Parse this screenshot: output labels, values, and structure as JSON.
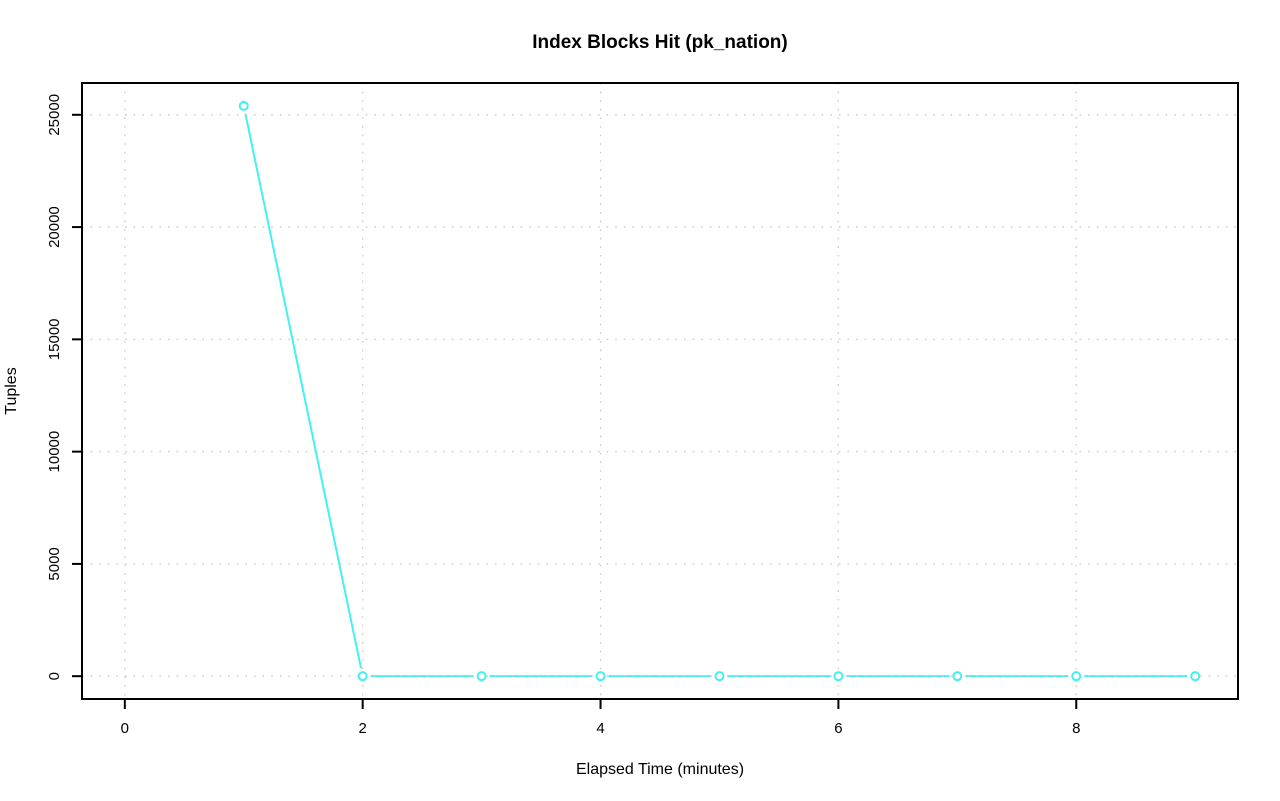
{
  "chart_data": {
    "type": "line",
    "title": "Index Blocks Hit (pk_nation)",
    "xlabel": "Elapsed Time (minutes)",
    "ylabel": "Tuples",
    "series": [
      {
        "name": "pk_nation",
        "x": [
          1,
          2,
          3,
          4,
          5,
          6,
          7,
          8,
          9
        ],
        "values": [
          25400,
          0,
          0,
          0,
          0,
          0,
          0,
          0,
          0
        ]
      }
    ],
    "xticks": [
      0,
      2,
      4,
      6,
      8
    ],
    "yticks": [
      0,
      5000,
      10000,
      15000,
      20000,
      25000
    ],
    "xlim": [
      0,
      9
    ],
    "ylim": [
      0,
      25400
    ],
    "grid": true,
    "grid_style": "dotted",
    "legend_position": "none",
    "marker": "open-circle",
    "line_color": "#45F0F0",
    "grid_color": "#c9c9c9",
    "axis_color": "#000000",
    "background_color": "#ffffff"
  }
}
